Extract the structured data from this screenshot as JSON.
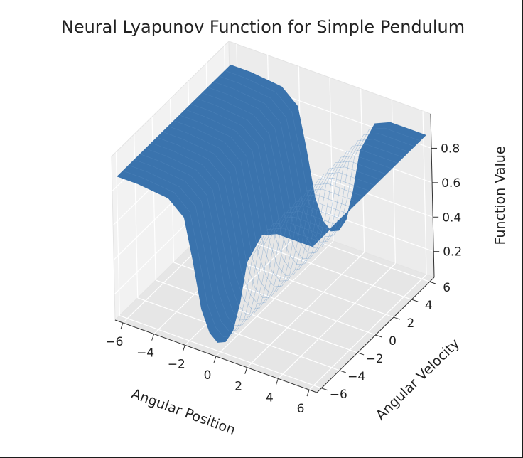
{
  "chart_data": {
    "type": "surface",
    "title": "Neural Lyapunov Function for Simple Pendulum",
    "xlabel": "Angular Position",
    "ylabel": "Angular Velocity",
    "zlabel": "Function Value",
    "xlim": [
      -6.5,
      6.5
    ],
    "ylim": [
      -6.5,
      6.5
    ],
    "zlim": [
      0.05,
      1.0
    ],
    "x_ticks": [
      -6,
      -4,
      -2,
      0,
      2,
      4,
      6
    ],
    "y_ticks": [
      -6,
      -4,
      -2,
      0,
      2,
      4,
      6
    ],
    "z_ticks": [
      0.2,
      0.4,
      0.6,
      0.8
    ],
    "x_tick_labels": [
      "−6",
      "−4",
      "−2",
      "0",
      "2",
      "4",
      "6"
    ],
    "y_tick_labels": [
      "−6",
      "−4",
      "−2",
      "0",
      "2",
      "4",
      "6"
    ],
    "z_tick_labels": [
      "0.2",
      "0.4",
      "0.6",
      "0.8"
    ],
    "surface_x": [
      -6.28,
      -5.0,
      -4.0,
      -3.0,
      -2.0,
      -1.5,
      -1.0,
      -0.5,
      0.0,
      0.5,
      1.0,
      1.5,
      2.0,
      3.0,
      4.0,
      5.0,
      6.28
    ],
    "surface_z": [
      0.88,
      0.88,
      0.87,
      0.86,
      0.78,
      0.55,
      0.28,
      0.16,
      0.12,
      0.14,
      0.22,
      0.4,
      0.65,
      0.84,
      0.88,
      0.88,
      0.88
    ],
    "color": "#3a73ad",
    "grid": true
  }
}
